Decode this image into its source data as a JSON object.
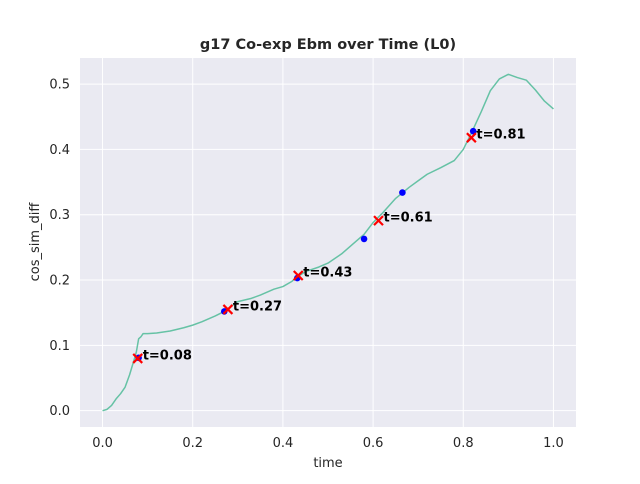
{
  "chart_data": {
    "type": "line",
    "title": "g17 Co-exp Ebm over Time (L0)",
    "xlabel": "time",
    "ylabel": "cos_sim_diff",
    "xlim": [
      -0.05,
      1.05
    ],
    "ylim": [
      -0.025,
      0.54
    ],
    "xticks": [
      0.0,
      0.2,
      0.4,
      0.6,
      0.8,
      1.0
    ],
    "xtick_labels": [
      "0.0",
      "0.2",
      "0.4",
      "0.6",
      "0.8",
      "1.0"
    ],
    "yticks": [
      0.0,
      0.1,
      0.2,
      0.3,
      0.4,
      0.5
    ],
    "ytick_labels": [
      "0.0",
      "0.1",
      "0.2",
      "0.3",
      "0.4",
      "0.5"
    ],
    "grid": true,
    "colors": {
      "background": "#eaeaf2",
      "grid": "#ffffff",
      "line": "#66c2a5",
      "cross_marker": "#ff0000",
      "dot_marker": "#0000ff",
      "annotation_text": "#000000"
    },
    "series": [
      {
        "type": "line",
        "x": [
          0.0,
          0.01,
          0.02,
          0.03,
          0.04,
          0.05,
          0.06,
          0.07,
          0.075,
          0.08,
          0.085,
          0.09,
          0.1,
          0.12,
          0.15,
          0.18,
          0.2,
          0.22,
          0.25,
          0.27,
          0.3,
          0.33,
          0.35,
          0.38,
          0.4,
          0.42,
          0.43,
          0.45,
          0.48,
          0.5,
          0.53,
          0.55,
          0.58,
          0.6,
          0.62,
          0.65,
          0.68,
          0.7,
          0.72,
          0.75,
          0.78,
          0.8,
          0.82,
          0.84,
          0.86,
          0.88,
          0.9,
          0.92,
          0.94,
          0.96,
          0.98,
          1.0
        ],
        "y": [
          0.0,
          0.002,
          0.008,
          0.018,
          0.026,
          0.036,
          0.055,
          0.078,
          0.09,
          0.11,
          0.113,
          0.118,
          0.118,
          0.119,
          0.122,
          0.127,
          0.131,
          0.136,
          0.145,
          0.152,
          0.167,
          0.172,
          0.177,
          0.186,
          0.19,
          0.198,
          0.204,
          0.213,
          0.22,
          0.226,
          0.24,
          0.252,
          0.27,
          0.288,
          0.302,
          0.325,
          0.342,
          0.352,
          0.362,
          0.372,
          0.383,
          0.4,
          0.428,
          0.458,
          0.49,
          0.508,
          0.515,
          0.51,
          0.506,
          0.491,
          0.474,
          0.462
        ]
      }
    ],
    "markers": [
      {
        "label": "t=0.08",
        "cross": [
          0.078,
          0.08
        ],
        "dot": [
          0.08,
          0.081
        ]
      },
      {
        "label": "t=0.27",
        "cross": [
          0.278,
          0.155
        ],
        "dot": [
          0.27,
          0.152
        ]
      },
      {
        "label": "t=0.43",
        "cross": [
          0.434,
          0.207
        ],
        "dot": [
          0.432,
          0.203
        ]
      },
      {
        "label": "t=0.61",
        "cross": [
          0.612,
          0.291
        ],
        "dot": null
      },
      {
        "label": "t=0.81",
        "cross": [
          0.818,
          0.418
        ],
        "dot": [
          0.822,
          0.428
        ]
      }
    ],
    "extra_dots": [
      [
        0.58,
        0.263
      ],
      [
        0.665,
        0.334
      ]
    ]
  }
}
